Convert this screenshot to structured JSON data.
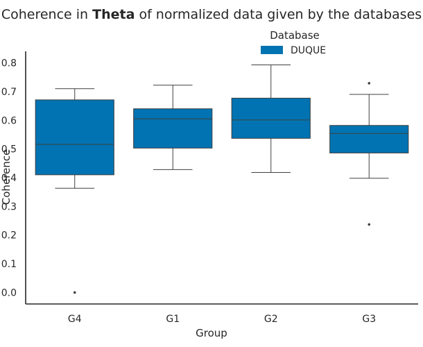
{
  "chart_data": {
    "type": "boxplot",
    "title_parts": [
      {
        "text": "Coherence in ",
        "bold": false
      },
      {
        "text": "Theta",
        "bold": true
      },
      {
        "text": " of normalized data given by the databases",
        "bold": false
      }
    ],
    "xlabel": "Group",
    "ylabel": "Coherence",
    "ylim": [
      -0.04,
      0.84
    ],
    "yticks": [
      "0.0",
      "0.1",
      "0.2",
      "0.3",
      "0.4",
      "0.5",
      "0.6",
      "0.7",
      "0.8"
    ],
    "categories": [
      "G4",
      "G1",
      "G2",
      "G3"
    ],
    "legend": {
      "title": "Database",
      "position": "top-center"
    },
    "series": [
      {
        "name": "DUQUE",
        "color": "#0173b2",
        "boxes": [
          {
            "group": "G4",
            "whislo": 0.363,
            "q1": 0.41,
            "med": 0.516,
            "q3": 0.671,
            "whishi": 0.71,
            "fliers": [
              0.0
            ]
          },
          {
            "group": "G1",
            "whislo": 0.428,
            "q1": 0.503,
            "med": 0.605,
            "q3": 0.64,
            "whishi": 0.722,
            "fliers": []
          },
          {
            "group": "G2",
            "whislo": 0.418,
            "q1": 0.537,
            "med": 0.601,
            "q3": 0.677,
            "whishi": 0.793,
            "fliers": []
          },
          {
            "group": "G3",
            "whislo": 0.398,
            "q1": 0.486,
            "med": 0.554,
            "q3": 0.582,
            "whishi": 0.69,
            "fliers": [
              0.729,
              0.237
            ]
          }
        ]
      }
    ]
  }
}
